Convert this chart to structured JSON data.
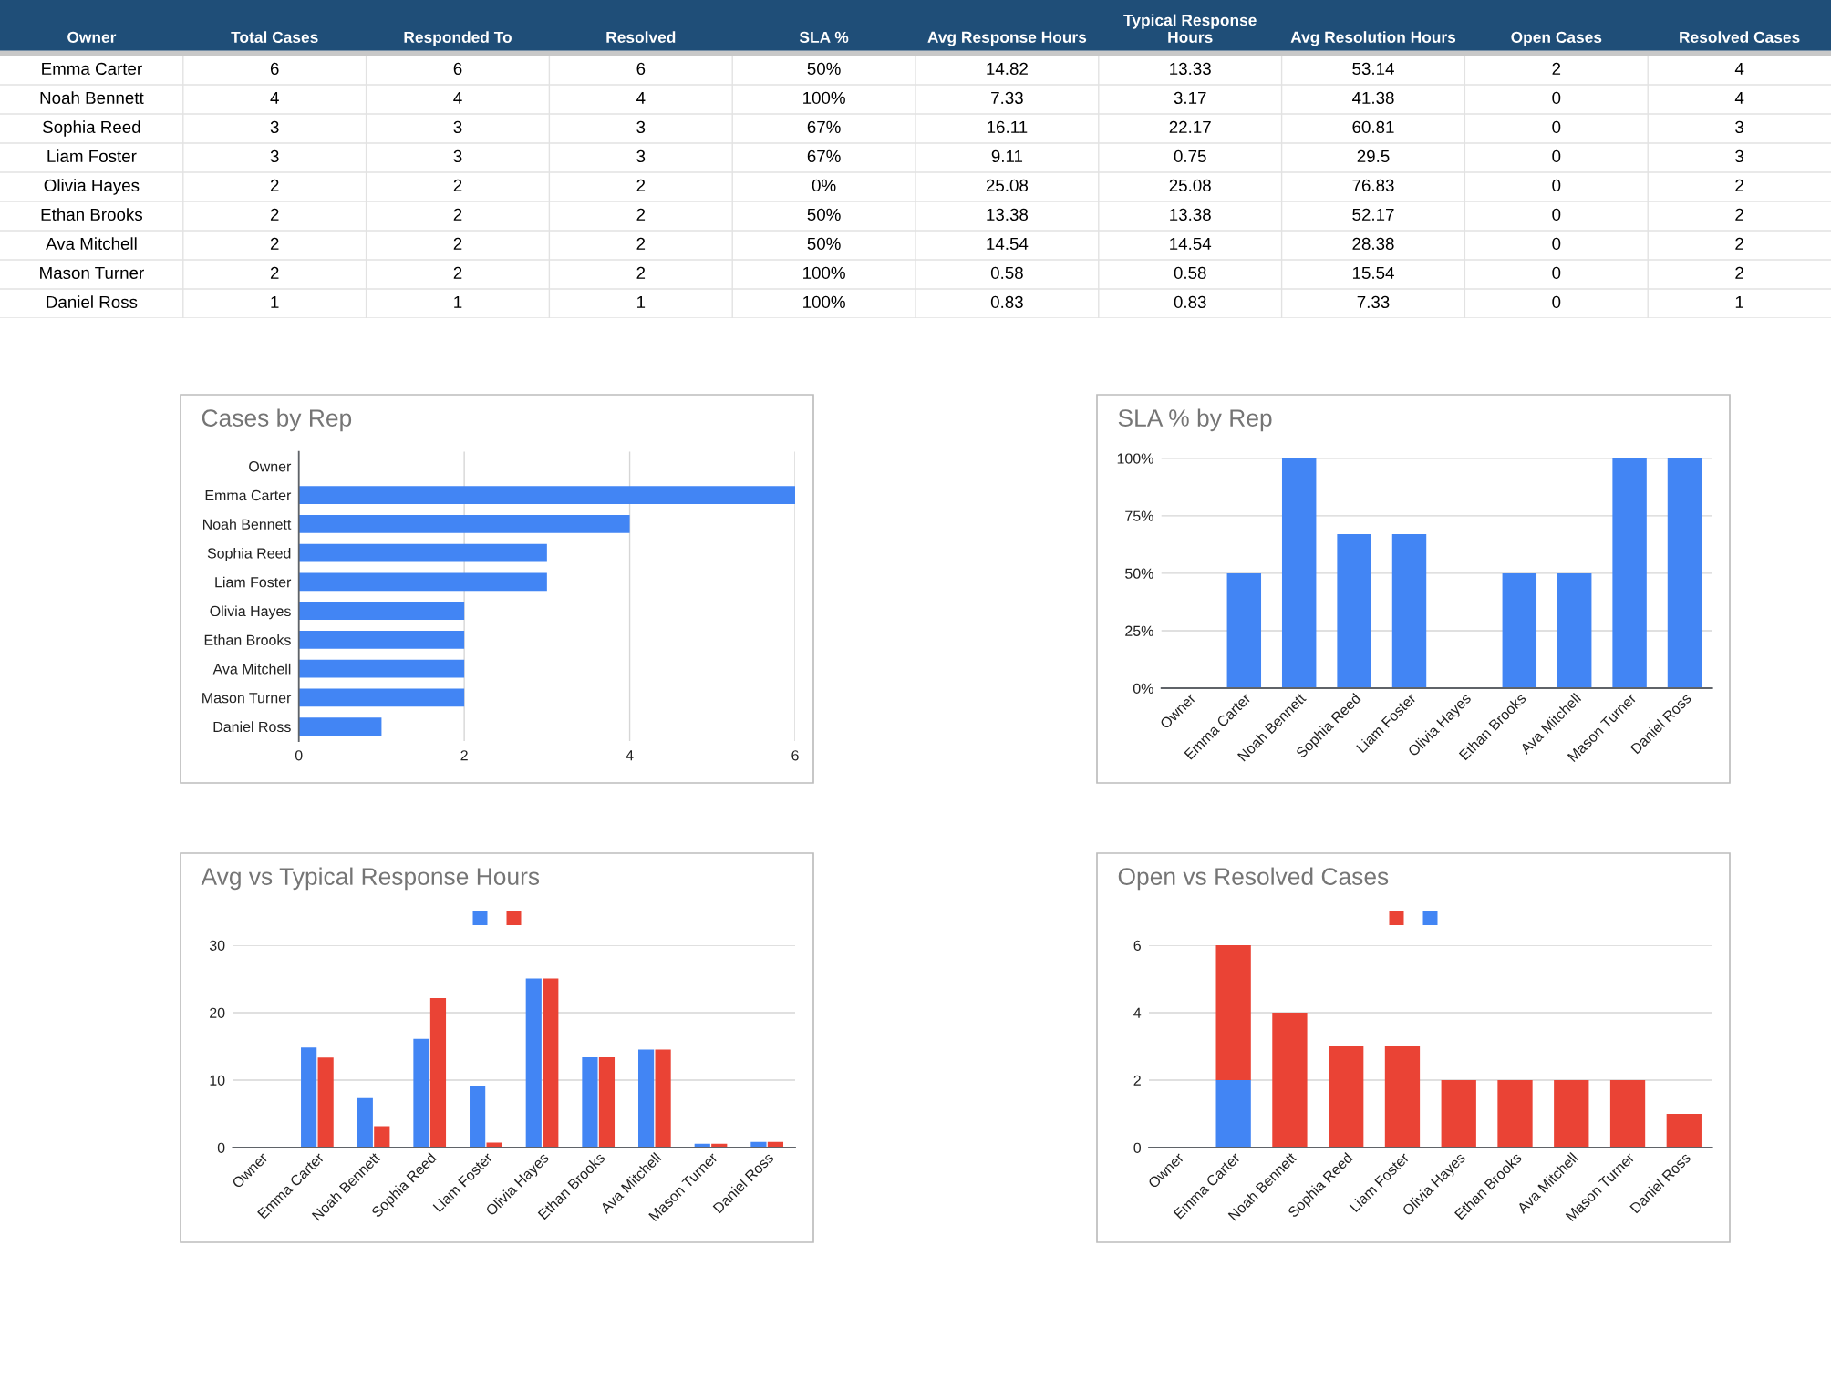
{
  "chart_data": [
    {
      "type": "other",
      "ylabel": "Owner",
      "categories": [
        "Total Cases",
        "Responded To",
        "Resolved",
        "SLA %",
        "Avg Response Hours",
        "Typical Response Hours",
        "Avg Resolution Hours",
        "Open Cases",
        "Resolved Cases"
      ],
      "y_categories": [
        "Emma Carter",
        "Noah Bennett",
        "Sophia Reed",
        "Liam Foster",
        "Olivia Hayes",
        "Ethan Brooks",
        "Ava Mitchell",
        "Mason Turner",
        "Daniel Ross"
      ],
      "cell_labels": [
        [
          "6",
          "6",
          "6",
          "50%",
          "14.82",
          "13.33",
          "53.14",
          "2",
          "4"
        ],
        [
          "4",
          "4",
          "4",
          "100%",
          "7.33",
          "3.17",
          "41.38",
          "0",
          "4"
        ],
        [
          "3",
          "3",
          "3",
          "67%",
          "16.11",
          "22.17",
          "60.81",
          "0",
          "3"
        ],
        [
          "3",
          "3",
          "3",
          "67%",
          "9.11",
          "0.75",
          "29.5",
          "0",
          "3"
        ],
        [
          "2",
          "2",
          "2",
          "0%",
          "25.08",
          "25.08",
          "76.83",
          "0",
          "2"
        ],
        [
          "2",
          "2",
          "2",
          "50%",
          "13.38",
          "13.38",
          "52.17",
          "0",
          "2"
        ],
        [
          "2",
          "2",
          "2",
          "50%",
          "14.54",
          "14.54",
          "28.38",
          "0",
          "2"
        ],
        [
          "2",
          "2",
          "2",
          "100%",
          "0.58",
          "0.58",
          "15.54",
          "0",
          "2"
        ],
        [
          "1",
          "1",
          "1",
          "100%",
          "0.83",
          "0.83",
          "7.33",
          "0",
          "1"
        ]
      ]
    },
    {
      "type": "bar",
      "title": "Cases by Rep",
      "orientation": "horizontal",
      "categories": [
        "Owner",
        "Emma Carter",
        "Noah Bennett",
        "Sophia Reed",
        "Liam Foster",
        "Olivia Hayes",
        "Ethan Brooks",
        "Ava Mitchell",
        "Mason Turner",
        "Daniel Ross"
      ],
      "series": [
        {
          "color": "#4285f4",
          "values": [
            null,
            6,
            4,
            3,
            3,
            2,
            2,
            2,
            2,
            1
          ]
        }
      ],
      "xlim": [
        0,
        6
      ],
      "xticks": [
        0,
        2,
        4,
        6
      ],
      "grid": "x"
    },
    {
      "type": "bar",
      "title": "SLA % by Rep",
      "categories": [
        "Owner",
        "Emma Carter",
        "Noah Bennett",
        "Sophia Reed",
        "Liam Foster",
        "Olivia Hayes",
        "Ethan Brooks",
        "Ava Mitchell",
        "Mason Turner",
        "Daniel Ross"
      ],
      "series": [
        {
          "color": "#4285f4",
          "values": [
            null,
            50,
            100,
            67,
            67,
            0,
            50,
            50,
            100,
            100
          ]
        }
      ],
      "ylim": [
        0,
        100
      ],
      "yticks": [
        {
          "value": 0,
          "label": "0%"
        },
        {
          "value": 25,
          "label": "25%"
        },
        {
          "value": 50,
          "label": "50%"
        },
        {
          "value": 75,
          "label": "75%"
        },
        {
          "value": 100,
          "label": "100%"
        }
      ],
      "grid": "y"
    },
    {
      "type": "bar",
      "title": "Avg vs Typical Response Hours",
      "categories": [
        "Owner",
        "Emma Carter",
        "Noah Bennett",
        "Sophia Reed",
        "Liam Foster",
        "Olivia Hayes",
        "Ethan Brooks",
        "Ava Mitchell",
        "Mason Turner",
        "Daniel Ross"
      ],
      "series": [
        {
          "color": "#4285f4",
          "values": [
            null,
            14.82,
            7.33,
            16.11,
            9.11,
            25.08,
            13.38,
            14.54,
            0.58,
            0.83
          ]
        },
        {
          "color": "#ea4335",
          "values": [
            null,
            13.33,
            3.17,
            22.17,
            0.75,
            25.08,
            13.38,
            14.54,
            0.58,
            0.83
          ]
        }
      ],
      "ylim": [
        0,
        30
      ],
      "yticks": [
        0,
        10,
        20,
        30
      ],
      "grid": "y"
    },
    {
      "type": "bar",
      "title": "Open vs Resolved Cases",
      "stacked": true,
      "categories": [
        "Owner",
        "Emma Carter",
        "Noah Bennett",
        "Sophia Reed",
        "Liam Foster",
        "Olivia Hayes",
        "Ethan Brooks",
        "Ava Mitchell",
        "Mason Turner",
        "Daniel Ross"
      ],
      "series": [
        {
          "color": "#4285f4",
          "values": [
            null,
            2,
            0,
            0,
            0,
            0,
            0,
            0,
            0,
            0
          ]
        },
        {
          "color": "#ea4335",
          "values": [
            null,
            4,
            4,
            3,
            3,
            2,
            2,
            2,
            2,
            1
          ]
        }
      ],
      "ylim": [
        0,
        6
      ],
      "yticks": [
        0,
        2,
        4,
        6
      ],
      "grid": "y"
    }
  ]
}
